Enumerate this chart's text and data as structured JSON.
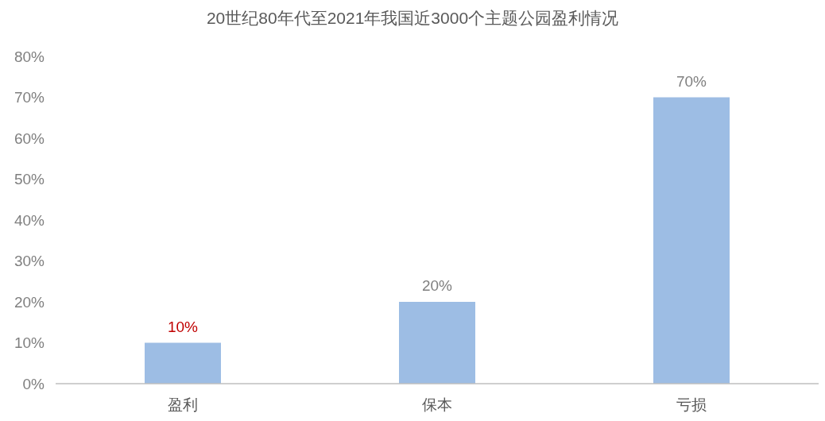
{
  "chart_data": {
    "type": "bar",
    "title": "20世纪80年代至2021年我国近3000个主题公园盈利情况",
    "categories": [
      "盈利",
      "保本",
      "亏损"
    ],
    "values": [
      10,
      20,
      70
    ],
    "color": "#9dbde4",
    "value_labels": [
      "10%",
      "20%",
      "70%"
    ],
    "ylim": [
      0,
      80
    ],
    "yticks": [
      {
        "value": 0,
        "label": "0%"
      },
      {
        "value": 10,
        "label": "10%"
      },
      {
        "value": 20,
        "label": "20%"
      },
      {
        "value": 30,
        "label": "30%"
      },
      {
        "value": 40,
        "label": "40%"
      },
      {
        "value": 50,
        "label": "50%"
      },
      {
        "value": 60,
        "label": "60%"
      },
      {
        "value": 70,
        "label": "70%"
      },
      {
        "value": 80,
        "label": "80%"
      }
    ],
    "grid": false
  }
}
